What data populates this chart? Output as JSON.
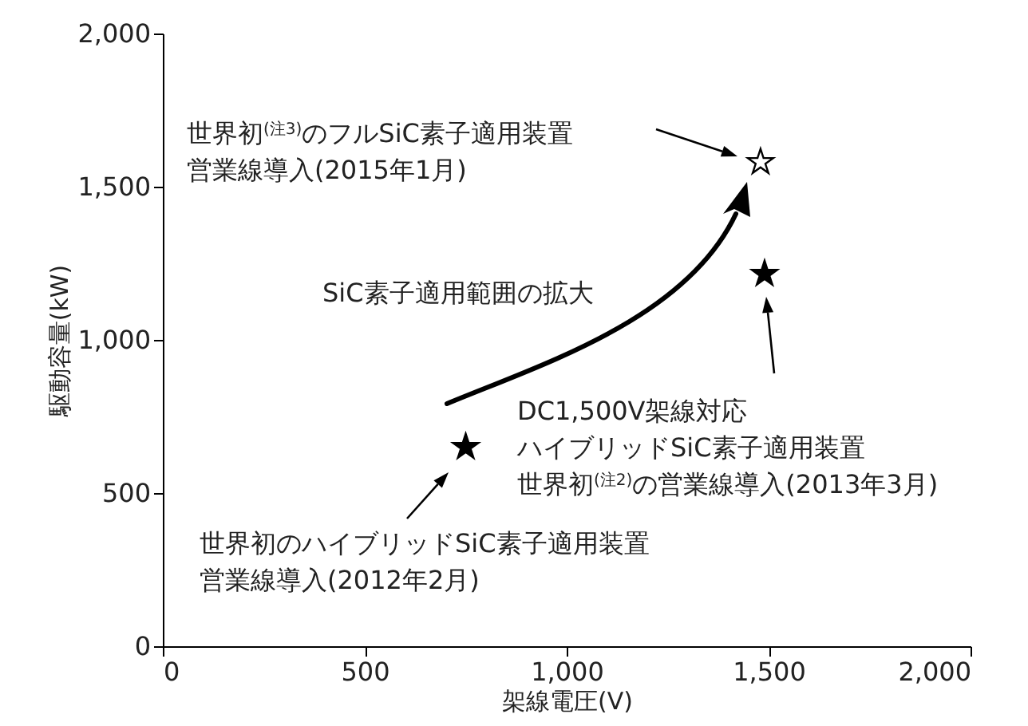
{
  "chart_data": {
    "type": "scatter",
    "xlabel": "架線電圧(V)",
    "ylabel": "駆動容量(kW)",
    "xlim": [
      0,
      2000
    ],
    "ylim": [
      0,
      2000
    ],
    "xticks": [
      0,
      500,
      {
        "value": 1000,
        "label": "1,000"
      },
      {
        "value": 1500,
        "label": "1,500"
      },
      {
        "value": 2000,
        "label": "2,000"
      }
    ],
    "yticks": [
      0,
      500,
      {
        "value": 1000,
        "label": "1,000"
      },
      {
        "value": 1500,
        "label": "1,500"
      },
      {
        "value": 2000,
        "label": "2,000"
      }
    ],
    "marker": "star",
    "series": [
      {
        "color": "#000000",
        "x": [
          750,
          1490
        ],
        "values": [
          650,
          1215
        ]
      },
      {
        "color": "#ffffff",
        "x": [
          1480
        ],
        "values": [
          1580
        ]
      }
    ],
    "annotations": [
      "世界初$^{(注3)}$のフルSiC素子適用装置営業線導入(2015年1月)",
      "SiC素子適用範囲の拡大",
      "DC1,500V架線対応",
      "ハイブリッドSiC素子適用装置",
      "世界初$^{(注2)}$の営業線導入(2013年3月)",
      "世界初のハイブリッドSiC素子適用装置営業線導入(2012年2月)"
    ]
  }
}
